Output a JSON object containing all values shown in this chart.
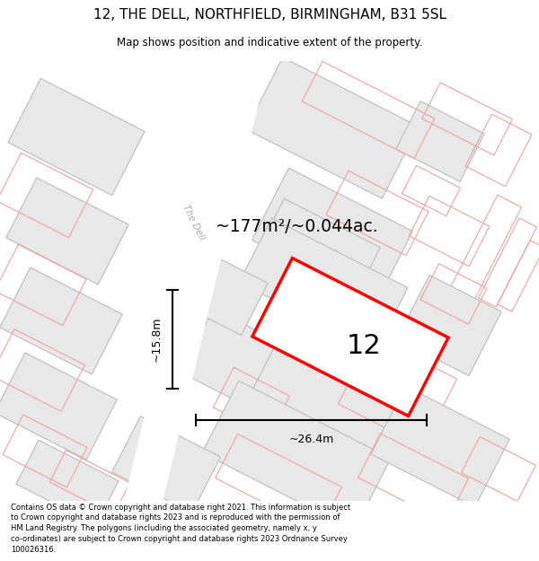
{
  "title": "12, THE DELL, NORTHFIELD, BIRMINGHAM, B31 5SL",
  "subtitle": "Map shows position and indicative extent of the property.",
  "footer": "Contains OS data © Crown copyright and database right 2021. This information is subject to Crown copyright and database rights 2023 and is reproduced with the permission of HM Land Registry. The polygons (including the associated geometry, namely x, y co-ordinates) are subject to Crown copyright and database rights 2023 Ordnance Survey 100026316.",
  "bg_color": "#ffffff",
  "map_bg": "#ffffff",
  "gray_fill": "#e8e8e8",
  "gray_stroke": "#bbbbbb",
  "pink_stroke": "#f0a0a0",
  "road_fill": "#ffffff",
  "highlight_stroke": "#ff0000",
  "highlight_fill": "#ffffff",
  "area_text": "~177m²/~0.044ac.",
  "plot_label": "12",
  "width_label": "~26.4m",
  "height_label": "~15.8m"
}
